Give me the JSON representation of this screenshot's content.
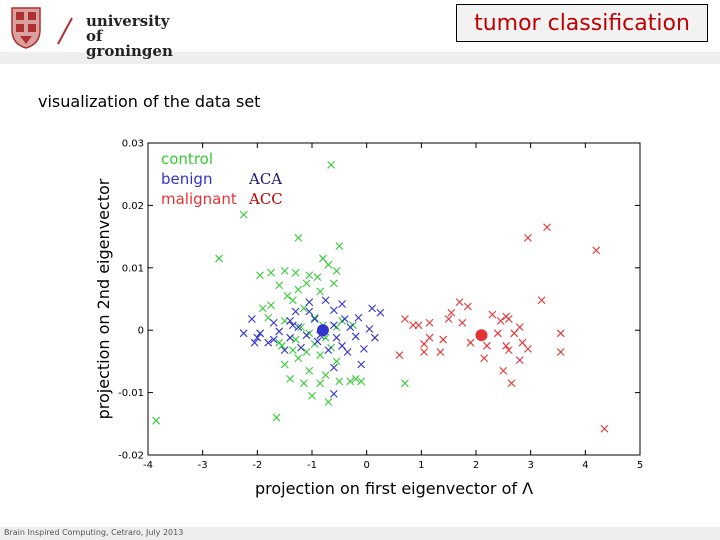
{
  "header": {
    "logo_line1": "university of",
    "logo_line2": "groningen",
    "title": "tumor classification"
  },
  "slide": {
    "subtitle": "visualization of the data set",
    "footer": "Brain Inspired Computing, Cetraro, July 2013"
  },
  "colors": {
    "control": "#33cc33",
    "benign": "#3333cc",
    "malignant": "#e53333",
    "title": "#c00000"
  },
  "chart_data": {
    "type": "scatter",
    "xlabel": "projection on first eigenvector of Λ",
    "ylabel": "projection on 2nd eigenvector",
    "xlim": [
      -4,
      5
    ],
    "ylim": [
      -0.02,
      0.03
    ],
    "xticks": [
      "-4",
      "-3",
      "-2",
      "-1",
      "0",
      "1",
      "2",
      "3",
      "4",
      "5"
    ],
    "yticks": [
      "-0.02",
      "-0.01",
      "0",
      "0.01",
      "0.02",
      "0.03"
    ],
    "legend": {
      "position": "top-left",
      "entries": [
        "control",
        "benign",
        "malignant"
      ],
      "annotations": [
        {
          "text": "ACA",
          "color": "#1a1a7a"
        },
        {
          "text": "ACC",
          "color": "#c00000"
        }
      ]
    },
    "series": [
      {
        "name": "control",
        "color": "#33cc33",
        "marker": "x",
        "points": [
          [
            -0.65,
            0.0265
          ],
          [
            -2.25,
            0.0185
          ],
          [
            -2.7,
            0.0115
          ],
          [
            -1.25,
            0.0148
          ],
          [
            -0.5,
            0.0135
          ],
          [
            -0.8,
            0.0115
          ],
          [
            -1.5,
            0.0095
          ],
          [
            -1.3,
            0.0092
          ],
          [
            -0.7,
            0.0105
          ],
          [
            -0.55,
            0.0095
          ],
          [
            -1.95,
            0.0088
          ],
          [
            -1.75,
            0.0092
          ],
          [
            -1.05,
            0.0088
          ],
          [
            -0.9,
            0.0085
          ],
          [
            -1.6,
            0.0072
          ],
          [
            -1.1,
            0.0075
          ],
          [
            -0.6,
            0.0075
          ],
          [
            -1.25,
            0.0065
          ],
          [
            -1.45,
            0.0055
          ],
          [
            -0.85,
            0.0062
          ],
          [
            -1.35,
            0.0048
          ],
          [
            -1.9,
            0.0035
          ],
          [
            -1.75,
            0.004
          ],
          [
            -1.15,
            0.0035
          ],
          [
            -0.95,
            0.002
          ],
          [
            -0.45,
            0.0015
          ],
          [
            -0.25,
            0.0008
          ],
          [
            -1.8,
            0.002
          ],
          [
            -1.5,
            0.0015
          ],
          [
            -1.2,
            0.0005
          ],
          [
            -0.8,
            0.0008
          ],
          [
            -0.55,
            0.0005
          ],
          [
            -1.05,
            -0.0005
          ],
          [
            -0.75,
            -0.0012
          ],
          [
            -1.3,
            -0.0015
          ],
          [
            -1.6,
            -0.002
          ],
          [
            -0.95,
            -0.0022
          ],
          [
            -1.35,
            -0.0032
          ],
          [
            -1.1,
            -0.0035
          ],
          [
            -0.65,
            -0.0028
          ],
          [
            -0.85,
            -0.004
          ],
          [
            -1.25,
            -0.0045
          ],
          [
            -1.5,
            -0.0055
          ],
          [
            -0.55,
            -0.005
          ],
          [
            -1.05,
            -0.0065
          ],
          [
            -0.75,
            -0.0072
          ],
          [
            -1.4,
            -0.0078
          ],
          [
            -1.15,
            -0.0085
          ],
          [
            -0.5,
            -0.0082
          ],
          [
            -0.85,
            -0.0085
          ],
          [
            -0.3,
            -0.0082
          ],
          [
            -0.2,
            -0.0078
          ],
          [
            -0.1,
            -0.0082
          ],
          [
            0.7,
            -0.0085
          ],
          [
            -1.0,
            -0.0105
          ],
          [
            -0.7,
            -0.0115
          ],
          [
            -1.65,
            -0.014
          ],
          [
            -3.85,
            -0.0145
          ],
          [
            -1.55,
            -0.0025
          ],
          [
            -1.95,
            -0.0005
          ]
        ]
      },
      {
        "name": "benign",
        "color": "#3333cc",
        "marker": "x",
        "points": [
          [
            -1.05,
            0.0045
          ],
          [
            -0.75,
            0.0048
          ],
          [
            -0.45,
            0.0042
          ],
          [
            -1.3,
            0.003
          ],
          [
            -1.05,
            0.003
          ],
          [
            -0.6,
            0.0032
          ],
          [
            0.1,
            0.0035
          ],
          [
            0.25,
            0.0028
          ],
          [
            -2.1,
            0.0018
          ],
          [
            -1.7,
            0.0012
          ],
          [
            -1.4,
            0.0015
          ],
          [
            -0.95,
            0.0018
          ],
          [
            -0.4,
            0.0018
          ],
          [
            -0.15,
            0.002
          ],
          [
            -2.25,
            -0.0005
          ],
          [
            -1.95,
            -0.0005
          ],
          [
            -1.6,
            -0.0002
          ],
          [
            -1.25,
            0.0005
          ],
          [
            -0.6,
            0.0008
          ],
          [
            -0.3,
            0.0005
          ],
          [
            0.05,
            0.0002
          ],
          [
            -2.0,
            -0.0012
          ],
          [
            -1.7,
            -0.0015
          ],
          [
            -1.4,
            -0.0012
          ],
          [
            -1.1,
            -0.0008
          ],
          [
            -0.55,
            -0.0012
          ],
          [
            -0.2,
            -0.001
          ],
          [
            0.15,
            -0.0012
          ],
          [
            -2.05,
            -0.002
          ],
          [
            -1.8,
            -0.002
          ],
          [
            -0.9,
            -0.0018
          ],
          [
            -0.45,
            -0.0025
          ],
          [
            -1.5,
            -0.0032
          ],
          [
            -1.2,
            -0.0028
          ],
          [
            -0.05,
            -0.003
          ],
          [
            -0.7,
            -0.0032
          ],
          [
            -0.35,
            -0.0035
          ],
          [
            -0.6,
            -0.006
          ],
          [
            -0.1,
            -0.0055
          ],
          [
            -0.6,
            -0.0102
          ],
          [
            -1.35,
            0.0008
          ],
          [
            -0.85,
            -0.0008
          ]
        ],
        "highlight": {
          "x": -0.8,
          "y": 0.0,
          "label": "ACA"
        }
      },
      {
        "name": "malignant",
        "color": "#e53333",
        "marker": "x",
        "points": [
          [
            3.3,
            0.0165
          ],
          [
            2.95,
            0.0148
          ],
          [
            4.2,
            0.0128
          ],
          [
            3.2,
            0.0048
          ],
          [
            1.7,
            0.0045
          ],
          [
            1.85,
            0.0038
          ],
          [
            1.55,
            0.0028
          ],
          [
            2.3,
            0.0025
          ],
          [
            2.55,
            0.0022
          ],
          [
            1.5,
            0.0018
          ],
          [
            0.7,
            0.0018
          ],
          [
            0.95,
            0.0008
          ],
          [
            1.15,
            0.0012
          ],
          [
            2.45,
            0.0015
          ],
          [
            2.6,
            0.0018
          ],
          [
            1.75,
            0.0012
          ],
          [
            2.8,
            0.0005
          ],
          [
            0.85,
            0.0008
          ],
          [
            2.7,
            -0.0005
          ],
          [
            3.55,
            -0.0005
          ],
          [
            1.15,
            -0.0012
          ],
          [
            1.4,
            -0.0015
          ],
          [
            2.4,
            -0.0005
          ],
          [
            1.05,
            -0.0022
          ],
          [
            1.9,
            -0.002
          ],
          [
            2.85,
            -0.002
          ],
          [
            2.55,
            -0.0025
          ],
          [
            1.35,
            -0.0035
          ],
          [
            0.6,
            -0.004
          ],
          [
            1.05,
            -0.0035
          ],
          [
            2.2,
            -0.0025
          ],
          [
            2.6,
            -0.0032
          ],
          [
            2.95,
            -0.003
          ],
          [
            3.55,
            -0.0035
          ],
          [
            2.15,
            -0.0045
          ],
          [
            2.8,
            -0.0048
          ],
          [
            2.5,
            -0.0065
          ],
          [
            2.65,
            -0.0085
          ],
          [
            4.35,
            -0.0158
          ]
        ],
        "highlight": {
          "x": 2.1,
          "y": -0.0008,
          "label": "ACC"
        }
      }
    ]
  }
}
